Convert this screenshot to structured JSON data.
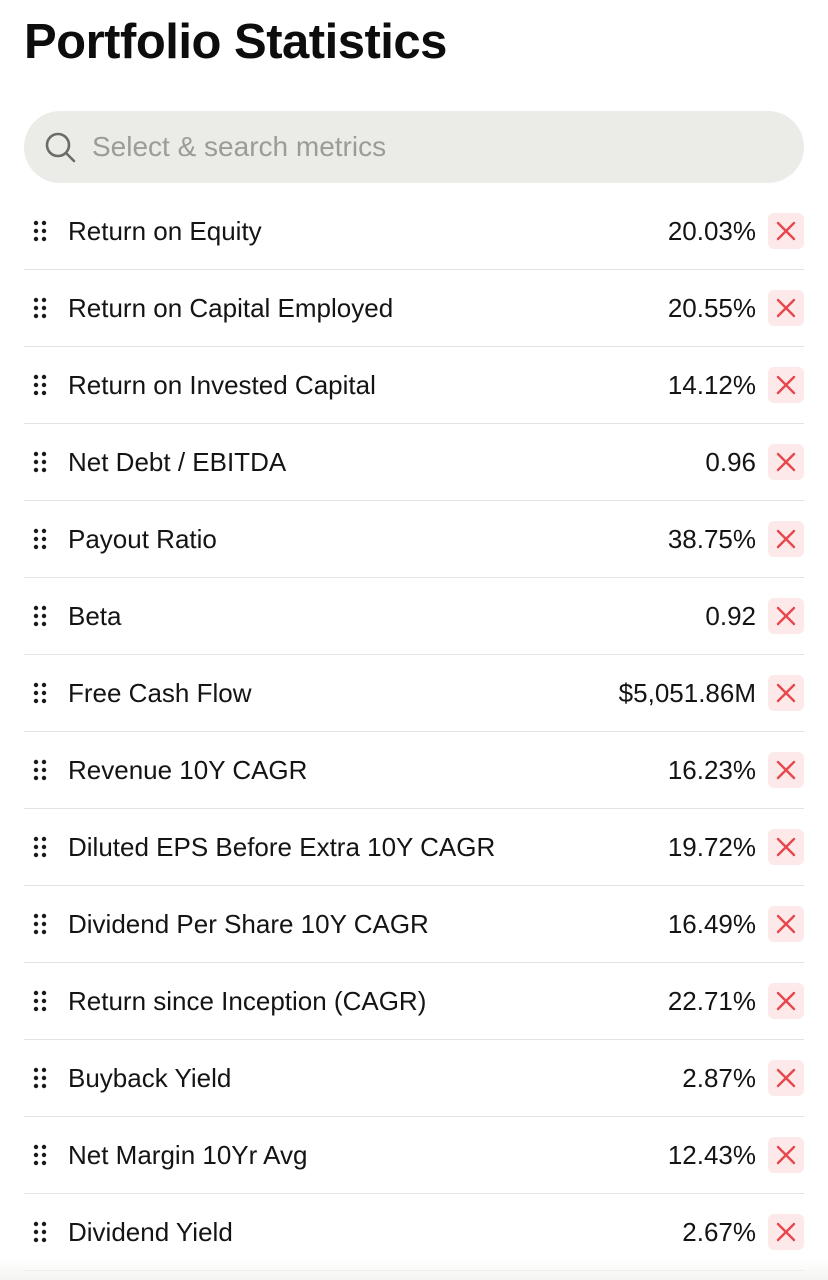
{
  "page": {
    "title": "Portfolio Statistics"
  },
  "search": {
    "placeholder": "Select & search metrics",
    "value": ""
  },
  "colors": {
    "remove_icon": "#e5484d",
    "remove_bg": "#fde9e9",
    "search_bg": "#ebebe8"
  },
  "metrics": [
    {
      "label": "Return on Equity",
      "value": "20.03%"
    },
    {
      "label": "Return on Capital Employed",
      "value": "20.55%"
    },
    {
      "label": "Return on Invested Capital",
      "value": "14.12%"
    },
    {
      "label": "Net Debt / EBITDA",
      "value": "0.96"
    },
    {
      "label": "Payout Ratio",
      "value": "38.75%"
    },
    {
      "label": "Beta",
      "value": "0.92"
    },
    {
      "label": "Free Cash Flow",
      "value": "$5,051.86M"
    },
    {
      "label": "Revenue 10Y CAGR",
      "value": "16.23%"
    },
    {
      "label": "Diluted EPS Before Extra 10Y CAGR",
      "value": "19.72%"
    },
    {
      "label": "Dividend Per Share 10Y CAGR",
      "value": "16.49%"
    },
    {
      "label": "Return since Inception (CAGR)",
      "value": "22.71%"
    },
    {
      "label": "Buyback Yield",
      "value": "2.87%"
    },
    {
      "label": "Net Margin 10Yr Avg",
      "value": "12.43%"
    },
    {
      "label": "Dividend Yield",
      "value": "2.67%"
    }
  ]
}
